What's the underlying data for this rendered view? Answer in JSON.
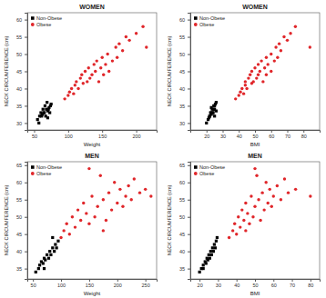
{
  "chart_data": [
    {
      "type": "scatter",
      "title": "WOMEN",
      "x_label": "Weight",
      "y_label": "NECK CIRCUMFERENCE (cm)",
      "legend": "top-left",
      "xlim": [
        40,
        230
      ],
      "xticks": [
        50,
        100,
        150,
        200
      ],
      "ylim": [
        28,
        62
      ],
      "yticks": [
        30,
        35,
        40,
        45,
        50,
        55,
        60
      ],
      "series": [
        {
          "name": "Non-Obese",
          "color": "#000000",
          "marker": "square",
          "x": [
            55,
            58,
            60,
            62,
            63,
            65,
            66,
            67,
            68,
            70,
            70,
            72,
            73,
            75,
            57,
            61,
            64,
            69,
            71,
            74
          ],
          "values": [
            31,
            32,
            33,
            32.5,
            34,
            33,
            35,
            32,
            34,
            33.5,
            31.5,
            34.5,
            33,
            35.5,
            30,
            32,
            33,
            36,
            34,
            35
          ]
        },
        {
          "name": "Obese",
          "color": "#e0262a",
          "marker": "circle",
          "x": [
            95,
            100,
            102,
            105,
            108,
            110,
            112,
            115,
            118,
            120,
            122,
            125,
            128,
            130,
            132,
            135,
            138,
            140,
            142,
            145,
            148,
            150,
            152,
            155,
            158,
            160,
            165,
            170,
            172,
            175,
            180,
            185,
            190,
            200,
            210,
            215
          ],
          "values": [
            37,
            38,
            39,
            40,
            38.5,
            41,
            42,
            40,
            43,
            44,
            41.5,
            45,
            42,
            46,
            43,
            44,
            47,
            45,
            48,
            42,
            46,
            49,
            44,
            47,
            50,
            45,
            48,
            52,
            49,
            53,
            51,
            55,
            54,
            56,
            58,
            52
          ]
        }
      ]
    },
    {
      "type": "scatter",
      "title": "WOMEN",
      "x_label": "BMI",
      "y_label": "NECK CIRCUMFERENCE (cm)",
      "legend": "top-left",
      "xlim": [
        10,
        90
      ],
      "xticks": [
        20,
        30,
        40,
        50,
        60,
        70,
        80
      ],
      "ylim": [
        28,
        62
      ],
      "yticks": [
        30,
        35,
        40,
        45,
        50,
        55,
        60
      ],
      "series": [
        {
          "name": "Non-Obese",
          "color": "#000000",
          "marker": "square",
          "x": [
            21,
            22,
            22.5,
            23,
            23.5,
            24,
            24.5,
            25,
            25,
            26,
            21.5,
            23,
            24,
            25.5,
            20,
            22,
            23,
            26,
            24.5,
            25
          ],
          "values": [
            31,
            32,
            33,
            32.5,
            34,
            33,
            35,
            32,
            34,
            33.5,
            31.5,
            34.5,
            33,
            35.5,
            30,
            32,
            33,
            36,
            34,
            35
          ]
        },
        {
          "name": "Obese",
          "color": "#e0262a",
          "marker": "circle",
          "x": [
            38,
            40,
            41,
            42,
            43,
            44,
            44,
            45,
            46,
            47,
            48,
            48,
            49,
            50,
            51,
            52,
            52,
            53,
            54,
            55,
            56,
            57,
            57,
            58,
            60,
            60,
            62,
            63,
            64,
            65,
            66,
            68,
            70,
            72,
            75,
            84
          ],
          "values": [
            37,
            38,
            39,
            40,
            38.5,
            41,
            42,
            40,
            43,
            44,
            41.5,
            45,
            42,
            46,
            43,
            44,
            47,
            45,
            48,
            42,
            46,
            49,
            44,
            47,
            50,
            45,
            48,
            52,
            49,
            53,
            51,
            55,
            54,
            56,
            58,
            52
          ]
        }
      ]
    },
    {
      "type": "scatter",
      "title": "MEN",
      "x_label": "Weight",
      "y_label": "NECK CIRCUMFERENCE (cm)",
      "legend": "top-left",
      "xlim": [
        40,
        270
      ],
      "xticks": [
        50,
        100,
        150,
        200,
        250
      ],
      "ylim": [
        32,
        66
      ],
      "yticks": [
        35,
        40,
        45,
        50,
        55,
        60,
        65
      ],
      "series": [
        {
          "name": "Non-Obese",
          "color": "#000000",
          "marker": "square",
          "x": [
            55,
            60,
            62,
            65,
            68,
            70,
            72,
            75,
            78,
            80,
            82,
            85,
            88,
            90,
            92,
            95,
            70,
            85
          ],
          "values": [
            34,
            35,
            36,
            37,
            36.5,
            38,
            37.5,
            39,
            38,
            40,
            39,
            41,
            40,
            42,
            41,
            43,
            35,
            44
          ]
        },
        {
          "name": "Obese",
          "color": "#e0262a",
          "marker": "circle",
          "x": [
            100,
            105,
            110,
            115,
            120,
            125,
            130,
            135,
            140,
            145,
            150,
            155,
            160,
            165,
            170,
            175,
            180,
            185,
            190,
            195,
            200,
            205,
            210,
            215,
            220,
            225,
            230,
            240,
            250,
            260,
            150,
            175
          ],
          "values": [
            44,
            46,
            48,
            45,
            50,
            47,
            52,
            49,
            54,
            51,
            48,
            56,
            50,
            53,
            62,
            55,
            49,
            57,
            52,
            60,
            54,
            58,
            53,
            56,
            59,
            55,
            61,
            57,
            58,
            56,
            64,
            46
          ]
        }
      ]
    },
    {
      "type": "scatter",
      "title": "MEN",
      "x_label": "BMI",
      "y_label": "NECK CIRCUMFERENCE (cm)",
      "legend": "top-left",
      "xlim": [
        15,
        85
      ],
      "xticks": [
        20,
        30,
        40,
        50,
        60,
        70,
        80
      ],
      "ylim": [
        32,
        66
      ],
      "yticks": [
        35,
        40,
        45,
        50,
        55,
        60,
        65
      ],
      "series": [
        {
          "name": "Non-Obese",
          "color": "#000000",
          "marker": "square",
          "x": [
            20,
            21,
            22,
            23,
            23.5,
            24,
            24.5,
            25,
            25.5,
            26,
            26.5,
            27,
            27.5,
            28,
            28.5,
            29,
            22,
            29.5
          ],
          "values": [
            34,
            35,
            36,
            37,
            36.5,
            38,
            37.5,
            39,
            38,
            40,
            39,
            41,
            40,
            42,
            41,
            43,
            35,
            44
          ]
        },
        {
          "name": "Obese",
          "color": "#e0262a",
          "marker": "circle",
          "x": [
            36,
            38,
            39,
            40,
            41,
            42,
            43,
            44,
            45,
            46,
            47,
            48,
            49,
            50,
            51,
            52,
            53,
            54,
            55,
            56,
            57,
            58,
            59,
            60,
            62,
            64,
            66,
            68,
            72,
            80,
            50,
            45
          ],
          "values": [
            44,
            46,
            48,
            45,
            50,
            47,
            52,
            49,
            54,
            51,
            48,
            56,
            50,
            53,
            62,
            55,
            49,
            57,
            52,
            60,
            54,
            58,
            53,
            56,
            59,
            55,
            61,
            57,
            58,
            56,
            64,
            46
          ]
        }
      ]
    }
  ]
}
